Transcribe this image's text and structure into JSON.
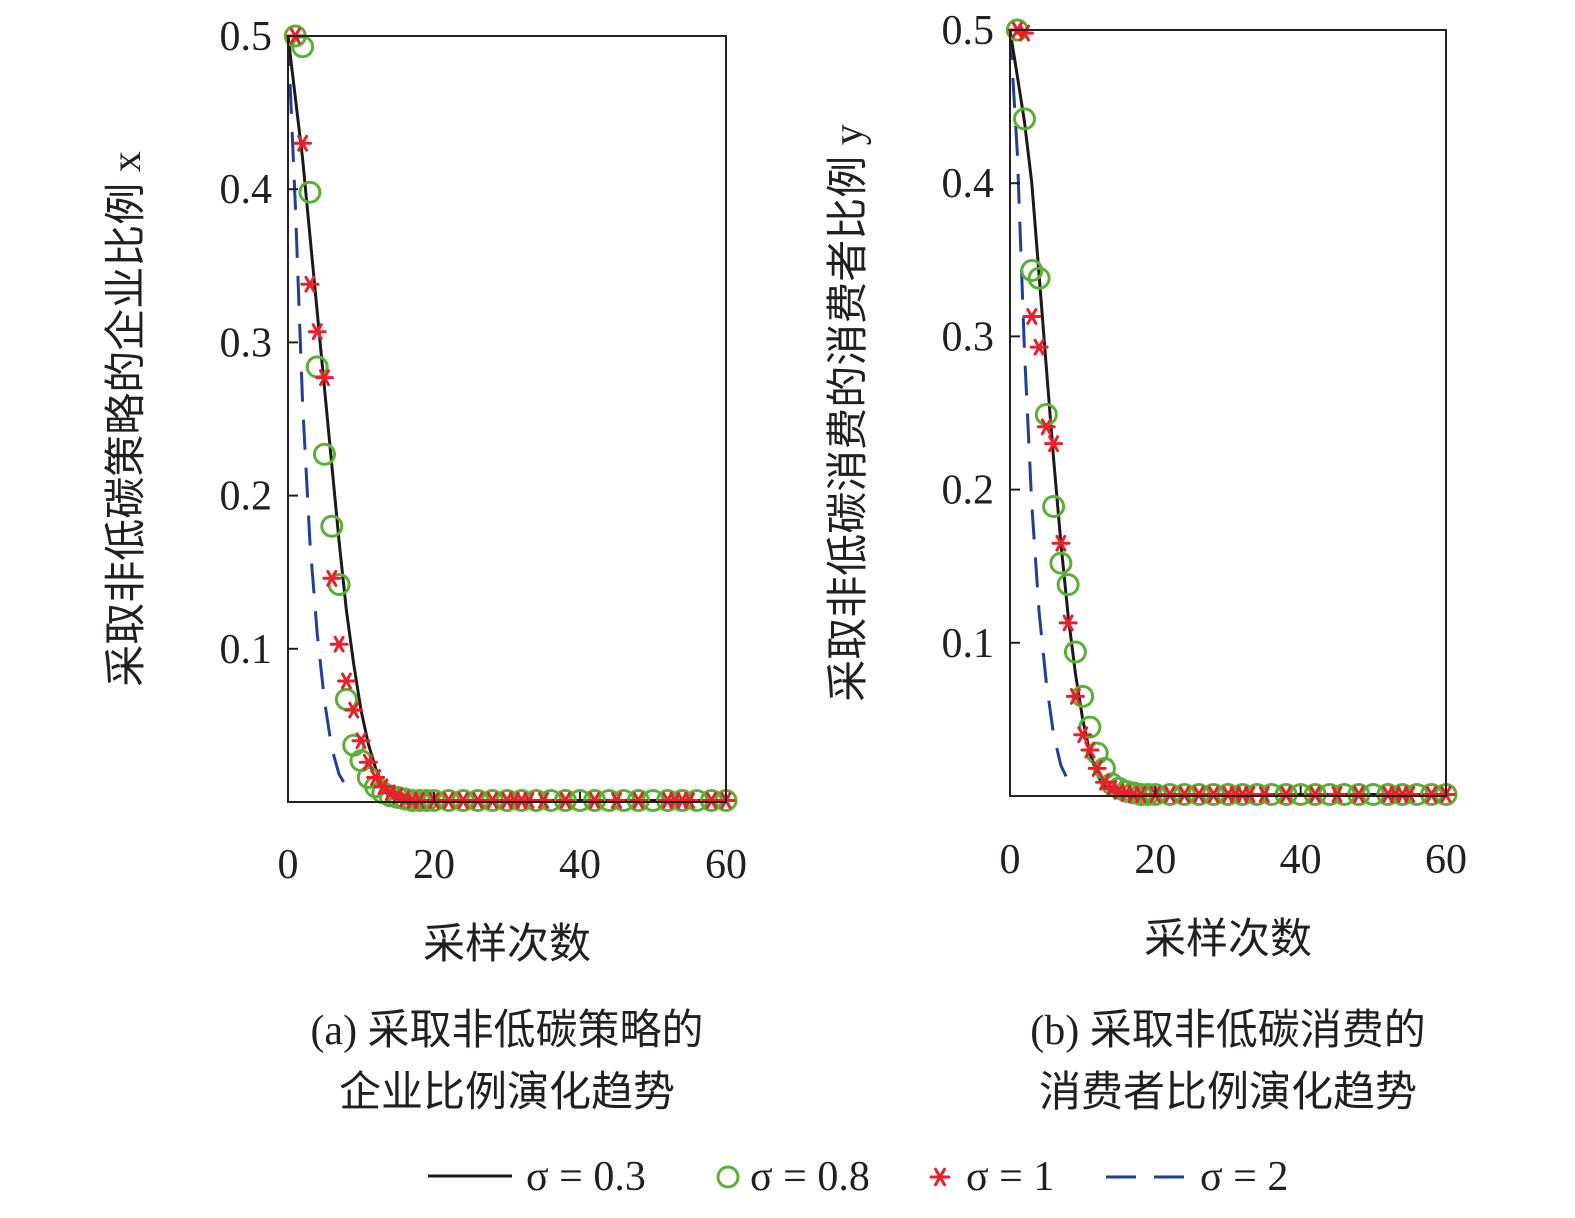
{
  "colors": {
    "s03": "#1a1a1a",
    "s08": "#5ab034",
    "s1": "#e8202a",
    "s2": "#1f3f99"
  },
  "legend": {
    "s03": "σ = 0.3",
    "s08": "σ = 0.8",
    "s1": "σ = 1",
    "s2": "σ = 2"
  },
  "chart_data": [
    {
      "type": "line",
      "xlabel": "采样次数",
      "ylabel": "采取非低碳策略的企业比例 x",
      "caption_line1": "(a) 采取非低碳策略的",
      "caption_line2": "企业比例演化趋势",
      "xlim": [
        0,
        60
      ],
      "ylim": [
        0,
        0.5
      ],
      "xticks": [
        "0",
        "20",
        "40",
        "60"
      ],
      "yticks": [
        "0.1",
        "0.2",
        "0.3",
        "0.4",
        "0.5"
      ],
      "series": [
        {
          "name": "σ = 0.3",
          "style": "solid",
          "x": [
            0,
            1,
            2,
            3,
            4,
            5,
            6,
            7,
            8,
            9,
            10,
            11,
            12,
            13,
            14,
            15,
            16,
            18,
            20,
            30,
            40,
            50,
            60
          ],
          "y": [
            0.5,
            0.46,
            0.42,
            0.37,
            0.32,
            0.27,
            0.22,
            0.17,
            0.125,
            0.09,
            0.06,
            0.038,
            0.022,
            0.011,
            0.005,
            0.002,
            0.001,
            0.001,
            0.001,
            0.001,
            0.001,
            0.001,
            0.001
          ]
        },
        {
          "name": "σ = 0.8",
          "style": "circle",
          "x": [
            1,
            2,
            3,
            4,
            5,
            6,
            7,
            8,
            9,
            10,
            11,
            12,
            13,
            14,
            15,
            16,
            17,
            18,
            19,
            20,
            22,
            24,
            26,
            28,
            30,
            32,
            34,
            36,
            38,
            40,
            42,
            44,
            46,
            48,
            50,
            52,
            54,
            56,
            58,
            60
          ],
          "y": [
            0.5,
            0.493,
            0.398,
            0.284,
            0.227,
            0.18,
            0.142,
            0.067,
            0.037,
            0.027,
            0.016,
            0.01,
            0.006,
            0.004,
            0.003,
            0.002,
            0.001,
            0.001,
            0.001,
            0.001,
            0.001,
            0.001,
            0.001,
            0.001,
            0.001,
            0.001,
            0.001,
            0.001,
            0.001,
            0.001,
            0.001,
            0.001,
            0.001,
            0.001,
            0.001,
            0.001,
            0.001,
            0.001,
            0.001,
            0.001
          ]
        },
        {
          "name": "σ = 1",
          "style": "asterisk",
          "x": [
            1,
            2,
            3,
            4,
            5,
            6,
            7,
            8,
            9,
            10,
            11,
            12,
            13,
            14,
            15,
            16,
            17,
            18,
            20,
            22,
            24,
            26,
            28,
            30,
            31,
            32,
            33,
            35,
            38,
            42,
            45,
            48,
            52,
            53,
            54,
            55,
            58,
            60
          ],
          "y": [
            0.5,
            0.43,
            0.338,
            0.307,
            0.277,
            0.146,
            0.103,
            0.079,
            0.06,
            0.04,
            0.026,
            0.016,
            0.01,
            0.006,
            0.004,
            0.002,
            0.001,
            0.001,
            0.001,
            0.001,
            0.001,
            0.001,
            0.001,
            0.001,
            0.001,
            0.001,
            0.001,
            0.001,
            0.001,
            0.001,
            0.001,
            0.001,
            0.001,
            0.001,
            0.001,
            0.001,
            0.001,
            0.001
          ]
        },
        {
          "name": "σ = 2",
          "style": "dashed",
          "x": [
            0,
            1,
            2,
            3,
            4,
            5,
            6,
            7,
            8
          ],
          "y": [
            0.5,
            0.39,
            0.26,
            0.17,
            0.11,
            0.066,
            0.035,
            0.018,
            0.01
          ]
        }
      ]
    },
    {
      "type": "line",
      "xlabel": "采样次数",
      "ylabel": "采取非低碳消费的消费者比例 y",
      "caption_line1": "(b) 采取非低碳消费的",
      "caption_line2": "消费者比例演化趋势",
      "xlim": [
        0,
        60
      ],
      "ylim": [
        0,
        0.5
      ],
      "xticks": [
        "0",
        "20",
        "40",
        "60"
      ],
      "yticks": [
        "0.1",
        "0.2",
        "0.3",
        "0.4",
        "0.5"
      ],
      "series": [
        {
          "name": "σ = 0.3",
          "style": "solid",
          "x": [
            0,
            1,
            2,
            3,
            4,
            5,
            6,
            7,
            8,
            9,
            10,
            11,
            12,
            13,
            14,
            15,
            16,
            18,
            20,
            30,
            40,
            50,
            60
          ],
          "y": [
            0.5,
            0.47,
            0.44,
            0.4,
            0.34,
            0.28,
            0.22,
            0.165,
            0.118,
            0.08,
            0.05,
            0.028,
            0.014,
            0.006,
            0.003,
            0.002,
            0.001,
            0.001,
            0.001,
            0.001,
            0.001,
            0.001,
            0.001
          ]
        },
        {
          "name": "σ = 0.8",
          "style": "circle",
          "x": [
            1,
            2,
            3,
            4,
            5,
            6,
            7,
            8,
            9,
            10,
            11,
            12,
            13,
            14,
            15,
            16,
            17,
            18,
            19,
            20,
            22,
            24,
            26,
            28,
            30,
            32,
            34,
            36,
            38,
            40,
            42,
            44,
            46,
            48,
            50,
            52,
            54,
            56,
            58,
            60
          ],
          "y": [
            0.5,
            0.442,
            0.343,
            0.338,
            0.249,
            0.189,
            0.152,
            0.138,
            0.094,
            0.065,
            0.045,
            0.028,
            0.018,
            0.008,
            0.005,
            0.003,
            0.002,
            0.001,
            0.001,
            0.001,
            0.001,
            0.001,
            0.001,
            0.001,
            0.001,
            0.001,
            0.001,
            0.001,
            0.001,
            0.001,
            0.001,
            0.001,
            0.001,
            0.001,
            0.001,
            0.001,
            0.001,
            0.001,
            0.001,
            0.001
          ]
        },
        {
          "name": "σ = 1",
          "style": "asterisk",
          "x": [
            1,
            2,
            3,
            4,
            5,
            6,
            7,
            8,
            9,
            10,
            11,
            12,
            13,
            14,
            15,
            16,
            17,
            18,
            20,
            22,
            24,
            26,
            28,
            30,
            31,
            32,
            33,
            35,
            38,
            42,
            45,
            48,
            52,
            53,
            54,
            55,
            58,
            60
          ],
          "y": [
            0.5,
            0.498,
            0.313,
            0.293,
            0.241,
            0.23,
            0.165,
            0.113,
            0.065,
            0.04,
            0.03,
            0.018,
            0.009,
            0.005,
            0.003,
            0.002,
            0.001,
            0.001,
            0.001,
            0.001,
            0.001,
            0.001,
            0.001,
            0.001,
            0.001,
            0.001,
            0.001,
            0.001,
            0.001,
            0.001,
            0.001,
            0.001,
            0.001,
            0.001,
            0.001,
            0.001,
            0.001,
            0.001
          ]
        },
        {
          "name": "σ = 2",
          "style": "dashed",
          "x": [
            0,
            1,
            2,
            3,
            4,
            5,
            6,
            7,
            8
          ],
          "y": [
            0.5,
            0.42,
            0.29,
            0.19,
            0.12,
            0.074,
            0.04,
            0.02,
            0.01
          ]
        }
      ]
    }
  ]
}
